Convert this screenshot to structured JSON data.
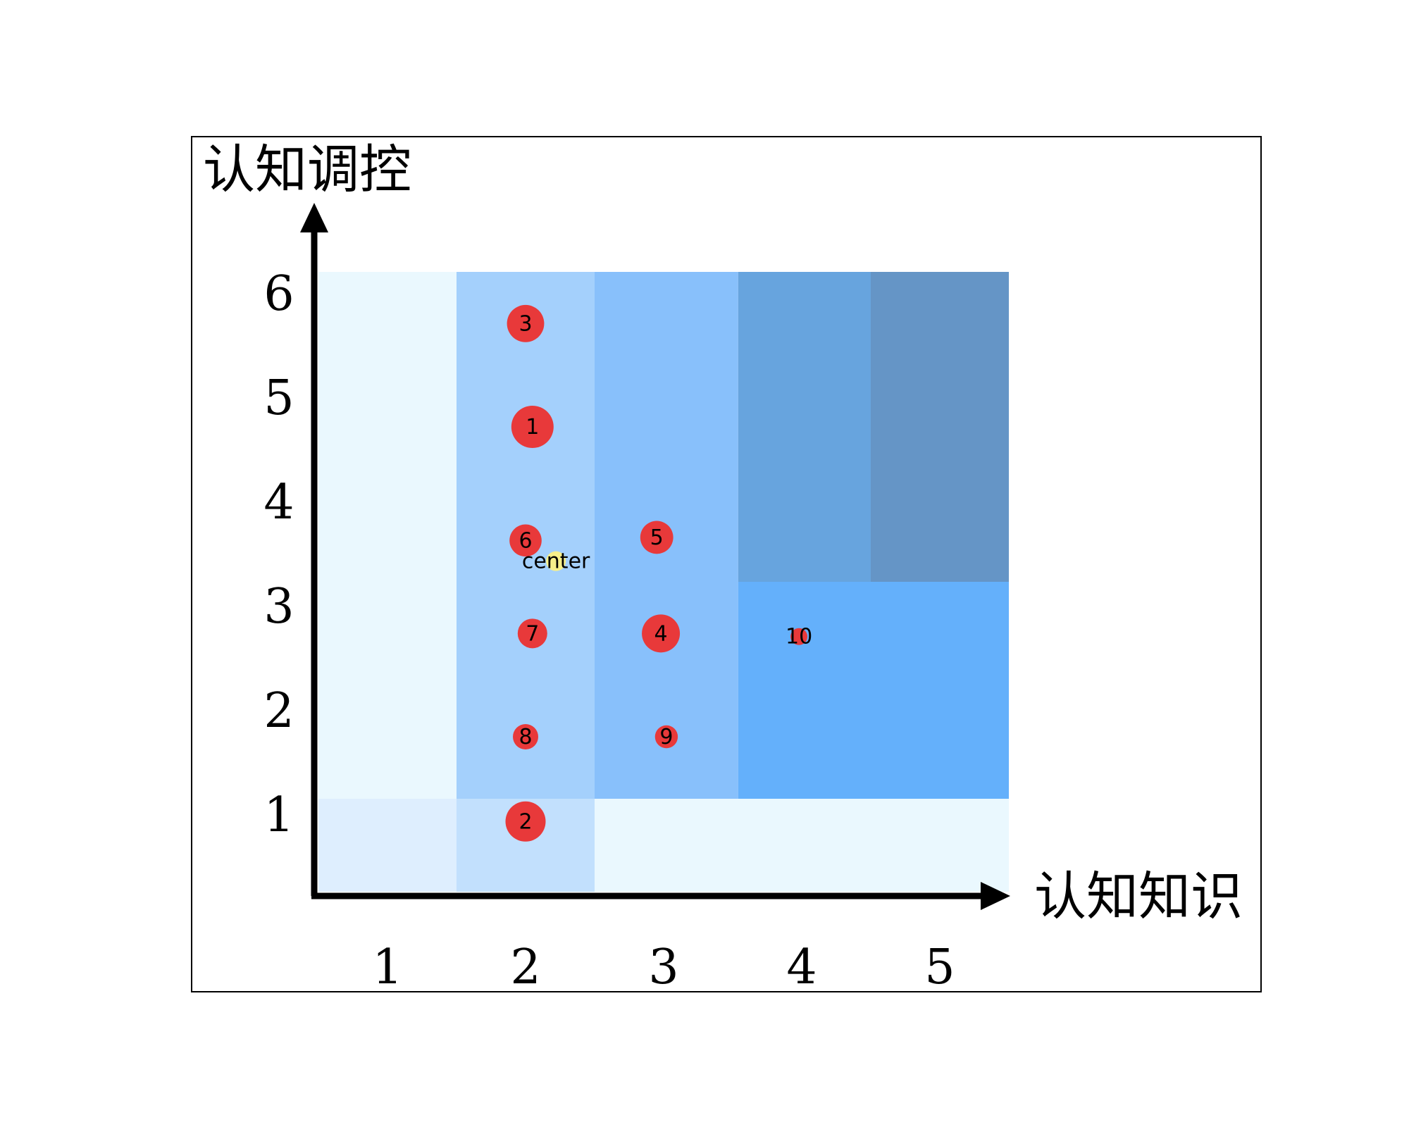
{
  "chart_data": {
    "type": "scatter",
    "xlabel": "认知知识",
    "ylabel": "认知调控",
    "xticks": [
      "1",
      "2",
      "3",
      "4",
      "5"
    ],
    "yticks": [
      "1",
      "2",
      "3",
      "4",
      "5",
      "6"
    ],
    "xlim": [
      0.5,
      5.5
    ],
    "ylim": [
      0.5,
      6.5
    ],
    "grid": false,
    "background_regions": [
      {
        "x": [
          0.5,
          1.5
        ],
        "y": [
          0.5,
          1.4
        ],
        "color": "#deeefe"
      },
      {
        "x": [
          1.5,
          2.5
        ],
        "y": [
          0.5,
          1.4
        ],
        "color": "#c2e0fd"
      },
      {
        "x": [
          2.5,
          5.5
        ],
        "y": [
          0.5,
          1.4
        ],
        "color": "#eaf8fe"
      },
      {
        "x": [
          0.5,
          1.5
        ],
        "y": [
          1.4,
          6.5
        ],
        "color": "#eaf8fe"
      },
      {
        "x": [
          1.5,
          2.5
        ],
        "y": [
          1.4,
          6.5
        ],
        "color": "#a4d0fc"
      },
      {
        "x": [
          2.5,
          3.54
        ],
        "y": [
          1.4,
          6.5
        ],
        "color": "#88c0fb"
      },
      {
        "x": [
          3.54,
          5.5
        ],
        "y": [
          1.4,
          3.5
        ],
        "color": "#64b0fb"
      },
      {
        "x": [
          3.54,
          4.5
        ],
        "y": [
          3.5,
          6.5
        ],
        "color": "#67a4de"
      },
      {
        "x": [
          4.5,
          5.5
        ],
        "y": [
          3.5,
          6.5
        ],
        "color": "#6595c6"
      }
    ],
    "points": [
      {
        "label": "1",
        "x": 2.05,
        "y": 5.0,
        "r": 1.0
      },
      {
        "label": "2",
        "x": 2.0,
        "y": 1.18,
        "r": 0.95
      },
      {
        "label": "3",
        "x": 2.0,
        "y": 6.0,
        "r": 0.88
      },
      {
        "label": "4",
        "x": 2.98,
        "y": 3.0,
        "r": 0.9
      },
      {
        "label": "5",
        "x": 2.95,
        "y": 3.93,
        "r": 0.78
      },
      {
        "label": "6",
        "x": 2.0,
        "y": 3.9,
        "r": 0.76
      },
      {
        "label": "7",
        "x": 2.05,
        "y": 3.0,
        "r": 0.7
      },
      {
        "label": "8",
        "x": 2.0,
        "y": 2.0,
        "r": 0.6
      },
      {
        "label": "9",
        "x": 3.02,
        "y": 2.0,
        "r": 0.54
      },
      {
        "label": "10",
        "x": 3.98,
        "y": 2.97,
        "r": 0.4
      }
    ],
    "center": {
      "label": "center",
      "x": 2.22,
      "y": 3.7
    },
    "colors": {
      "point": "#e8393a",
      "center": "#f7f08a",
      "axis": "#000000",
      "frame": "#000000"
    }
  }
}
